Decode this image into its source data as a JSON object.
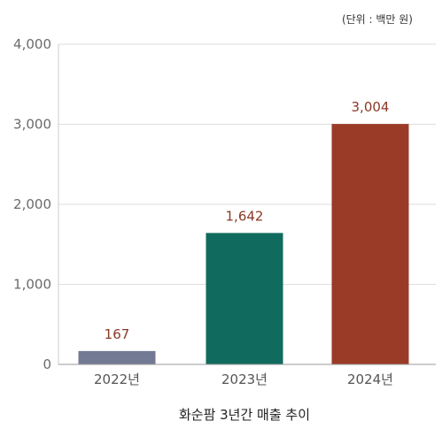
{
  "chart_data": {
    "type": "bar",
    "categories": [
      "2022년",
      "2023년",
      "2024년"
    ],
    "values": [
      167,
      1642,
      3004
    ],
    "value_labels": [
      "167",
      "1,642",
      "3,004"
    ],
    "colors": [
      "#737a93",
      "#106b5e",
      "#9a3b27"
    ],
    "value_label_color": "#8a3a26",
    "title": "",
    "unit": "(단위 : 백만 원)",
    "xlabel": "화순팜 3년간 매출 추이",
    "ylabel": "",
    "ylim": [
      0,
      4000
    ],
    "yticks": [
      0,
      1000,
      2000,
      3000,
      4000
    ],
    "ytick_labels": [
      "0",
      "1,000",
      "2,000",
      "3,000",
      "4,000"
    ],
    "grid": true,
    "legend": "none"
  }
}
